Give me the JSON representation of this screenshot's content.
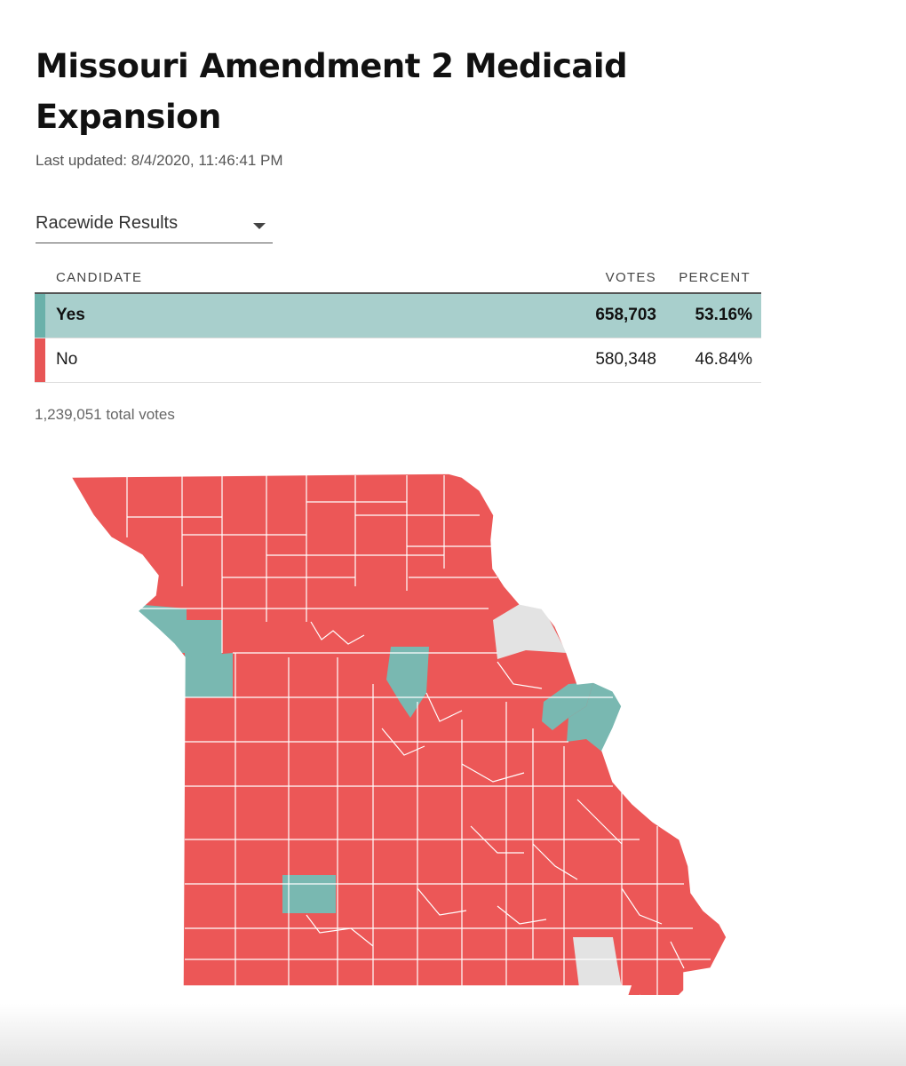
{
  "title": "Missouri Amendment 2 Medicaid Expansion",
  "last_updated": "Last updated: 8/4/2020, 11:46:41 PM",
  "race_select": {
    "selected": "Racewide Results"
  },
  "table": {
    "headers": {
      "candidate": "CANDIDATE",
      "votes": "VOTES",
      "percent": "PERCENT"
    },
    "rows": [
      {
        "candidate": "Yes",
        "votes": "658,703",
        "percent": "53.16%",
        "color": "#6ab1aa"
      },
      {
        "candidate": "No",
        "votes": "580,348",
        "percent": "46.84%",
        "color": "#e85656"
      }
    ]
  },
  "total_votes": "1,239,051 total votes",
  "map": {
    "colors": {
      "yes": "#79b8b1",
      "no": "#ec5757",
      "no_results": "#e3e3e3",
      "border": "#ffffff"
    }
  }
}
